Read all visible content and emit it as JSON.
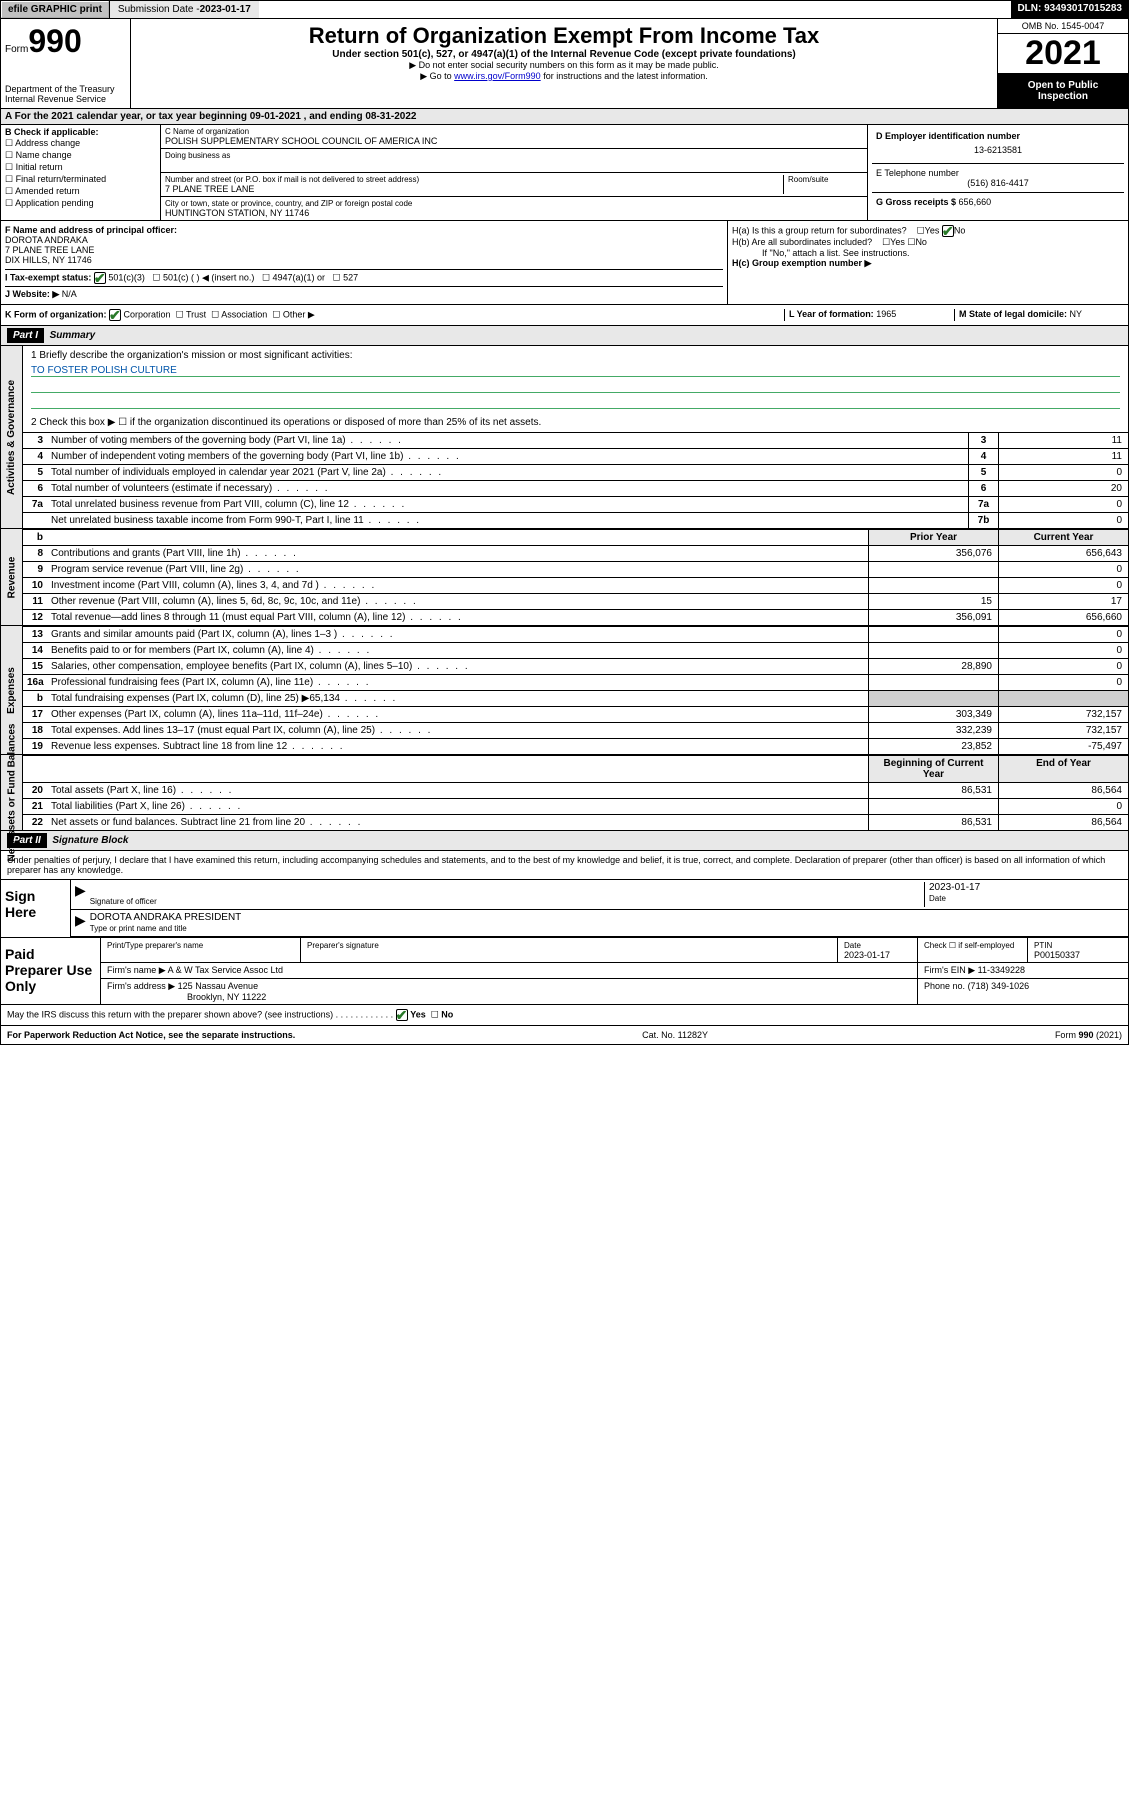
{
  "topbar": {
    "efile": "efile GRAPHIC print",
    "submission_label": "Submission Date - ",
    "submission_date": "2023-01-17",
    "dln_label": "DLN: ",
    "dln": "93493017015283"
  },
  "header": {
    "form_label": "Form",
    "form_num": "990",
    "title": "Return of Organization Exempt From Income Tax",
    "subtitle": "Under section 501(c), 527, or 4947(a)(1) of the Internal Revenue Code (except private foundations)",
    "note1": "▶ Do not enter social security numbers on this form as it may be made public.",
    "note2_pre": "▶ Go to ",
    "note2_link": "www.irs.gov/Form990",
    "note2_post": " for instructions and the latest information.",
    "omb": "OMB No. 1545-0047",
    "year": "2021",
    "open_public": "Open to Public Inspection",
    "dept": "Department of the Treasury",
    "irs": "Internal Revenue Service"
  },
  "period": {
    "text_pre": "For the 2021 calendar year, or tax year beginning ",
    "begin": "09-01-2021",
    "mid": " , and ending ",
    "end": "08-31-2022"
  },
  "box_b": {
    "label": "B Check if applicable:",
    "items": [
      "Address change",
      "Name change",
      "Initial return",
      "Final return/terminated",
      "Amended return",
      "Application pending"
    ]
  },
  "box_c": {
    "name_label": "C Name of organization",
    "name": "POLISH SUPPLEMENTARY SCHOOL COUNCIL OF AMERICA INC",
    "dba_label": "Doing business as",
    "street_label": "Number and street (or P.O. box if mail is not delivered to street address)",
    "street": "7 PLANE TREE LANE",
    "room_label": "Room/suite",
    "city_label": "City or town, state or province, country, and ZIP or foreign postal code",
    "city": "HUNTINGTON STATION, NY  11746"
  },
  "box_d": {
    "ein_label": "D Employer identification number",
    "ein": "13-6213581",
    "phone_label": "E Telephone number",
    "phone": "(516) 816-4417",
    "gross_label": "G Gross receipts $ ",
    "gross": "656,660"
  },
  "box_f": {
    "label": "F  Name and address of principal officer:",
    "name": "DOROTA ANDRAKA",
    "addr1": "7 PLANE TREE LANE",
    "addr2": "DIX HILLS, NY  11746"
  },
  "box_h": {
    "a_label": "H(a)  Is this a group return for subordinates?",
    "b_label": "H(b)  Are all subordinates included?",
    "b_note": "If \"No,\" attach a list. See instructions.",
    "c_label": "H(c)  Group exemption number ▶",
    "yes": "Yes",
    "no": "No"
  },
  "box_i": {
    "label": "I  Tax-exempt status:",
    "opts": [
      "501(c)(3)",
      "501(c) (  ) ◀ (insert no.)",
      "4947(a)(1) or",
      "527"
    ]
  },
  "box_j": {
    "label": "J  Website: ▶",
    "val": "N/A"
  },
  "box_k": {
    "label": "K Form of organization:",
    "opts": [
      "Corporation",
      "Trust",
      "Association",
      "Other ▶"
    ]
  },
  "box_l": {
    "label": "L Year of formation: ",
    "val": "1965"
  },
  "box_m": {
    "label": "M State of legal domicile: ",
    "val": "NY"
  },
  "part1": {
    "header": "Part I",
    "title": "Summary"
  },
  "mission": {
    "q1": "1  Briefly describe the organization's mission or most significant activities:",
    "text": "TO FOSTER POLISH CULTURE",
    "q2": "2  Check this box ▶ ☐  if the organization discontinued its operations or disposed of more than 25% of its net assets."
  },
  "gov_rows": [
    {
      "n": "3",
      "d": "Number of voting members of the governing body (Part VI, line 1a)",
      "ln": "3",
      "v": "11"
    },
    {
      "n": "4",
      "d": "Number of independent voting members of the governing body (Part VI, line 1b)",
      "ln": "4",
      "v": "11"
    },
    {
      "n": "5",
      "d": "Total number of individuals employed in calendar year 2021 (Part V, line 2a)",
      "ln": "5",
      "v": "0"
    },
    {
      "n": "6",
      "d": "Total number of volunteers (estimate if necessary)",
      "ln": "6",
      "v": "20"
    },
    {
      "n": "7a",
      "d": "Total unrelated business revenue from Part VIII, column (C), line 12",
      "ln": "7a",
      "v": "0"
    },
    {
      "n": "",
      "d": "Net unrelated business taxable income from Form 990-T, Part I, line 11",
      "ln": "7b",
      "v": "0"
    }
  ],
  "prior_label": "Prior Year",
  "current_label": "Current Year",
  "rev_rows": [
    {
      "n": "8",
      "d": "Contributions and grants (Part VIII, line 1h)",
      "p": "356,076",
      "c": "656,643"
    },
    {
      "n": "9",
      "d": "Program service revenue (Part VIII, line 2g)",
      "p": "",
      "c": "0"
    },
    {
      "n": "10",
      "d": "Investment income (Part VIII, column (A), lines 3, 4, and 7d )",
      "p": "",
      "c": "0"
    },
    {
      "n": "11",
      "d": "Other revenue (Part VIII, column (A), lines 5, 6d, 8c, 9c, 10c, and 11e)",
      "p": "15",
      "c": "17"
    },
    {
      "n": "12",
      "d": "Total revenue—add lines 8 through 11 (must equal Part VIII, column (A), line 12)",
      "p": "356,091",
      "c": "656,660"
    }
  ],
  "exp_rows": [
    {
      "n": "13",
      "d": "Grants and similar amounts paid (Part IX, column (A), lines 1–3 )",
      "p": "",
      "c": "0"
    },
    {
      "n": "14",
      "d": "Benefits paid to or for members (Part IX, column (A), line 4)",
      "p": "",
      "c": "0"
    },
    {
      "n": "15",
      "d": "Salaries, other compensation, employee benefits (Part IX, column (A), lines 5–10)",
      "p": "28,890",
      "c": "0"
    },
    {
      "n": "16a",
      "d": "Professional fundraising fees (Part IX, column (A), line 11e)",
      "p": "",
      "c": "0"
    },
    {
      "n": "b",
      "d": "Total fundraising expenses (Part IX, column (D), line 25) ▶65,134",
      "p": "GREY",
      "c": "GREY"
    },
    {
      "n": "17",
      "d": "Other expenses (Part IX, column (A), lines 11a–11d, 11f–24e)",
      "p": "303,349",
      "c": "732,157"
    },
    {
      "n": "18",
      "d": "Total expenses. Add lines 13–17 (must equal Part IX, column (A), line 25)",
      "p": "332,239",
      "c": "732,157"
    },
    {
      "n": "19",
      "d": "Revenue less expenses. Subtract line 18 from line 12",
      "p": "23,852",
      "c": "-75,497"
    }
  ],
  "begin_label": "Beginning of Current Year",
  "end_label": "End of Year",
  "net_rows": [
    {
      "n": "20",
      "d": "Total assets (Part X, line 16)",
      "p": "86,531",
      "c": "86,564"
    },
    {
      "n": "21",
      "d": "Total liabilities (Part X, line 26)",
      "p": "",
      "c": "0"
    },
    {
      "n": "22",
      "d": "Net assets or fund balances. Subtract line 21 from line 20",
      "p": "86,531",
      "c": "86,564"
    }
  ],
  "part2": {
    "header": "Part II",
    "title": "Signature Block"
  },
  "sig_declaration": "Under penalties of perjury, I declare that I have examined this return, including accompanying schedules and statements, and to the best of my knowledge and belief, it is true, correct, and complete. Declaration of preparer (other than officer) is based on all information of which preparer has any knowledge.",
  "sign_here": "Sign Here",
  "sig_officer_label": "Signature of officer",
  "sig_date_label": "Date",
  "sig_date": "2023-01-17",
  "sig_name": "DOROTA ANDRAKA  PRESIDENT",
  "sig_name_label": "Type or print name and title",
  "paid_preparer": "Paid Preparer Use Only",
  "prep": {
    "print_label": "Print/Type preparer's name",
    "sig_label": "Preparer's signature",
    "date_label": "Date",
    "date": "2023-01-17",
    "check_label": "Check ☐ if self-employed",
    "ptin_label": "PTIN",
    "ptin": "P00150337",
    "firm_name_label": "Firm's name   ▶",
    "firm_name": "A & W Tax Service Assoc Ltd",
    "firm_ein_label": "Firm's EIN ▶",
    "firm_ein": "11-3349228",
    "firm_addr_label": "Firm's address ▶",
    "firm_addr1": "125 Nassau Avenue",
    "firm_addr2": "Brooklyn, NY  11222",
    "phone_label": "Phone no.",
    "phone": "(718) 349-1026"
  },
  "may_irs": "May the IRS discuss this return with the preparer shown above? (see instructions)",
  "paperwork": "For Paperwork Reduction Act Notice, see the separate instructions.",
  "cat": "Cat. No. 11282Y",
  "form_foot": "Form 990 (2021)"
}
